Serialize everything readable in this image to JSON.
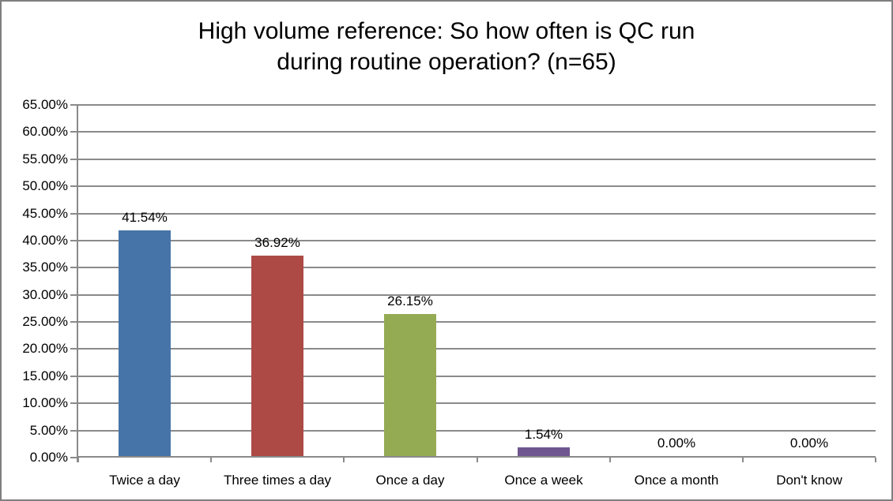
{
  "chart_data": {
    "type": "bar",
    "title": "High volume reference: So how often is QC run during routine operation? (n=65)",
    "title_lines": [
      "High volume reference: So how often is QC run",
      "during routine operation? (n=65)"
    ],
    "categories": [
      "Twice a day",
      "Three times a day",
      "Once a day",
      "Once a week",
      "Once a month",
      "Don't know"
    ],
    "values": [
      41.54,
      36.92,
      26.15,
      1.54,
      0.0,
      0.0
    ],
    "data_labels": [
      "41.54%",
      "36.92%",
      "26.15%",
      "1.54%",
      "0.00%",
      "0.00%"
    ],
    "bar_colors": [
      "#4674A8",
      "#AD4A45",
      "#95AB53",
      "#6F5691",
      null,
      null
    ],
    "xlabel": "",
    "ylabel": "",
    "ylim": [
      0,
      65
    ],
    "ytick_step": 5,
    "ytick_labels": [
      "0.00%",
      "5.00%",
      "10.00%",
      "15.00%",
      "20.00%",
      "25.00%",
      "30.00%",
      "35.00%",
      "40.00%",
      "45.00%",
      "50.00%",
      "55.00%",
      "60.00%",
      "65.00%"
    ],
    "grid": true,
    "legend_position": "none"
  },
  "colors": {
    "gridline": "#8A8A8A",
    "axis": "#8A8A8A",
    "border": "#7F7F7F",
    "text": "#000000",
    "background": "#FFFFFF"
  }
}
